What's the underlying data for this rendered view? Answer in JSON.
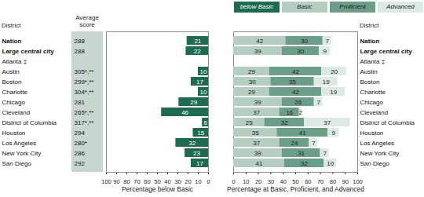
{
  "chart_data": [
    {
      "type": "bar",
      "orientation": "horizontal",
      "categories": [
        "Nation",
        "Large central city",
        "Atlanta ‡",
        "Austin",
        "Boston",
        "Charlotte",
        "Chicago",
        "Cleveland",
        "District of Columbia",
        "Houston",
        "Los Angeles",
        "New York City",
        "San Diego"
      ],
      "category_label": "District",
      "score_label": "Average score",
      "scores": [
        "288",
        "288",
        null,
        "305*,**",
        "299*,**",
        "304*,**",
        "281",
        "265*,**",
        "317*,**",
        "294",
        "280*",
        "286",
        "292"
      ],
      "series": [
        {
          "name": "below Basic",
          "color": "#1d6b50",
          "values": [
            21,
            22,
            null,
            10,
            17,
            10,
            29,
            46,
            6,
            15,
            32,
            23,
            17
          ]
        }
      ],
      "xlabel": "Percentage below Basic",
      "xlim": [
        100,
        0
      ],
      "xticks": [
        100,
        90,
        80,
        70,
        60,
        50,
        40,
        30,
        20,
        10,
        0
      ],
      "data_labels": true
    },
    {
      "type": "bar",
      "orientation": "horizontal",
      "stacked": true,
      "categories": [
        "Nation",
        "Large central city",
        "Atlanta ‡",
        "Austin",
        "Boston",
        "Charlotte",
        "Chicago",
        "Cleveland",
        "District of Columbia",
        "Houston",
        "Los Angeles",
        "New York City",
        "San Diego"
      ],
      "category_label": "District",
      "series": [
        {
          "name": "Basic",
          "color": "#b4cec1",
          "values": [
            42,
            39,
            null,
            29,
            30,
            29,
            39,
            37,
            25,
            35,
            37,
            39,
            41
          ]
        },
        {
          "name": "Proficient",
          "color": "#6b9e88",
          "values": [
            30,
            30,
            null,
            42,
            35,
            42,
            26,
            16,
            32,
            41,
            24,
            31,
            32
          ]
        },
        {
          "name": "Advanced",
          "color": "#dde9e3",
          "values": [
            7,
            9,
            null,
            20,
            19,
            19,
            7,
            2,
            37,
            9,
            7,
            7,
            10
          ]
        }
      ],
      "xlabel": "Percentage at Basic, Proficient, and Advanced",
      "xlim": [
        0,
        100
      ],
      "xticks": [
        0,
        10,
        20,
        30,
        40,
        50,
        60,
        70,
        80,
        90,
        100
      ],
      "data_labels": true,
      "legend": "top"
    }
  ]
}
